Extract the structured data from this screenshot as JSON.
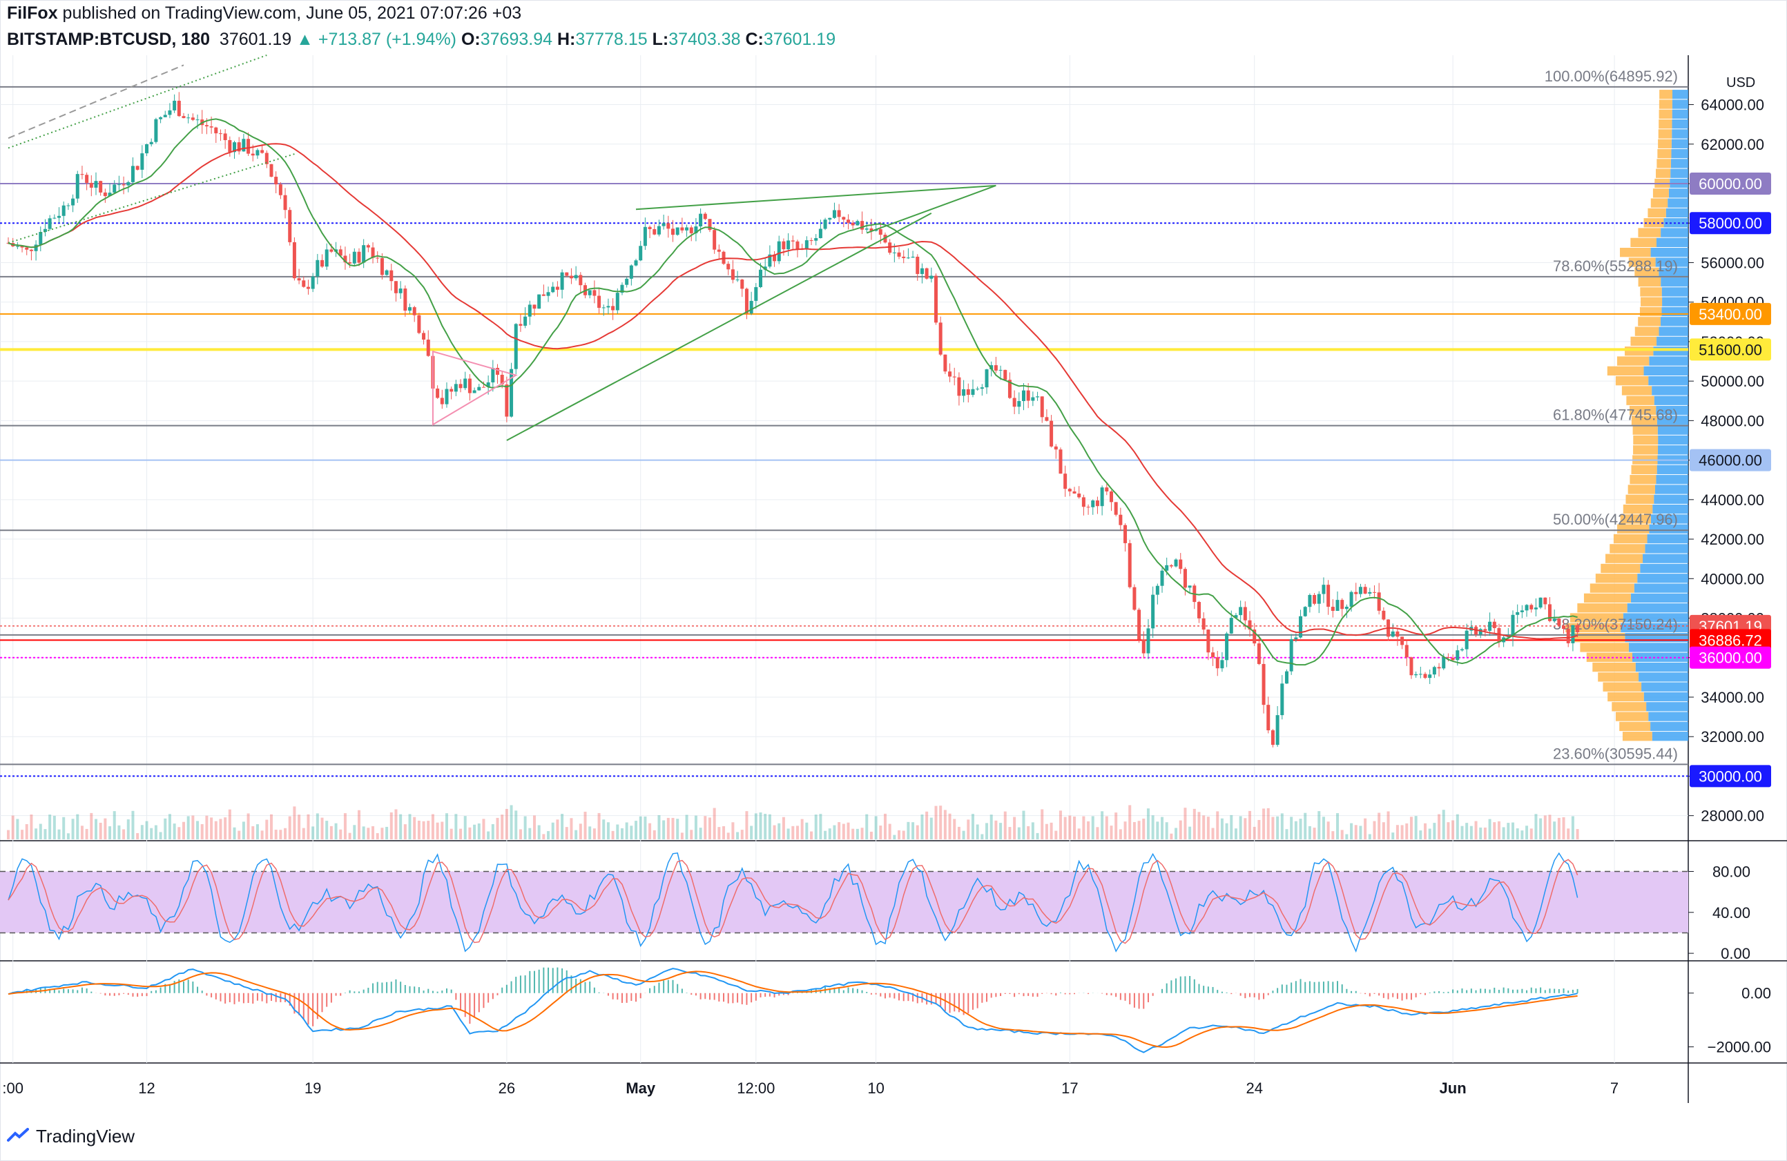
{
  "header": {
    "author": "FilFox",
    "published_text": " published on TradingView.com, June 05, 2021 07:07:26 +03",
    "symbol": "BITSTAMP:BTCUSD, 180",
    "last": "37601.19",
    "change": "▲ +713.87 (+1.94%)",
    "o_label": "O:",
    "o": "37693.94",
    "h_label": "H:",
    "h": "37778.15",
    "l_label": "L:",
    "l": "37403.38",
    "c_label": "C:",
    "c": "37601.19"
  },
  "footer": {
    "brand": "TradingView"
  },
  "colors": {
    "up": "#26a69a",
    "down": "#ef5350",
    "grid": "#e9edf2",
    "axis": "#131722",
    "ma_red": "#e53935",
    "ma_green": "#43a047",
    "stoch_band": "#e3c8f5",
    "blue": "#2196f3",
    "orange": "#ff6d00",
    "vp_blue": "#42a5f5",
    "vp_orange": "#ffb74d"
  },
  "chart_data": {
    "type": "candlestick",
    "title": "BITSTAMP:BTCUSD, 180",
    "currency": "USD",
    "x_ticks": [
      ":00",
      "12",
      "19",
      "26",
      "May",
      "12:00",
      "10",
      "17",
      "24",
      "Jun",
      "7"
    ],
    "x_tick_positions": [
      0.5,
      15,
      33,
      54,
      68.5,
      81,
      94,
      115,
      135,
      156.5,
      174
    ],
    "date_range_days": [
      0,
      182
    ],
    "price_range": [
      26800,
      66500
    ],
    "price_ticks": [
      28000,
      30000,
      32000,
      34000,
      36000,
      38000,
      40000,
      42000,
      44000,
      46000,
      48000,
      50000,
      52000,
      54000,
      56000,
      58000,
      60000,
      62000,
      64000
    ],
    "price_close_path": [
      [
        0,
        57000
      ],
      [
        2,
        56500
      ],
      [
        4,
        58000
      ],
      [
        6,
        58800
      ],
      [
        8,
        60500
      ],
      [
        10,
        59500
      ],
      [
        12,
        60000
      ],
      [
        14,
        61000
      ],
      [
        16,
        63000
      ],
      [
        18,
        64000
      ],
      [
        20,
        63200
      ],
      [
        22,
        62800
      ],
      [
        24,
        62000
      ],
      [
        26,
        61800
      ],
      [
        28,
        61000
      ],
      [
        30,
        59000
      ],
      [
        31,
        55000
      ],
      [
        32,
        54500
      ],
      [
        33,
        55500
      ],
      [
        35,
        56500
      ],
      [
        37,
        56000
      ],
      [
        39,
        56800
      ],
      [
        41,
        55500
      ],
      [
        43,
        54000
      ],
      [
        45,
        52500
      ],
      [
        46,
        50000
      ],
      [
        47,
        49000
      ],
      [
        49,
        50000
      ],
      [
        51,
        49500
      ],
      [
        53,
        50500
      ],
      [
        54,
        48500
      ],
      [
        55,
        53000
      ],
      [
        57,
        54000
      ],
      [
        59,
        55000
      ],
      [
        61,
        55200
      ],
      [
        63,
        54200
      ],
      [
        65,
        53500
      ],
      [
        67,
        55500
      ],
      [
        69,
        57500
      ],
      [
        71,
        57800
      ],
      [
        73,
        57200
      ],
      [
        75,
        58500
      ],
      [
        77,
        56500
      ],
      [
        79,
        55000
      ],
      [
        80,
        53500
      ],
      [
        82,
        56000
      ],
      [
        84,
        57000
      ],
      [
        86,
        56500
      ],
      [
        88,
        57500
      ],
      [
        90,
        58500
      ],
      [
        92,
        58000
      ],
      [
        94,
        57500
      ],
      [
        96,
        56500
      ],
      [
        98,
        56000
      ],
      [
        100,
        55000
      ],
      [
        101,
        51000
      ],
      [
        103,
        49500
      ],
      [
        105,
        50000
      ],
      [
        107,
        50500
      ],
      [
        109,
        49000
      ],
      [
        111,
        49500
      ],
      [
        113,
        47000
      ],
      [
        115,
        44000
      ],
      [
        117,
        43500
      ],
      [
        119,
        44500
      ],
      [
        121,
        42000
      ],
      [
        122,
        38000
      ],
      [
        123,
        36500
      ],
      [
        124,
        39000
      ],
      [
        126,
        41000
      ],
      [
        128,
        39500
      ],
      [
        129,
        38000
      ],
      [
        130,
        36000
      ],
      [
        131,
        35500
      ],
      [
        133,
        38500
      ],
      [
        135,
        37000
      ],
      [
        136,
        34000
      ],
      [
        137,
        31500
      ],
      [
        138,
        35000
      ],
      [
        140,
        38000
      ],
      [
        142,
        39500
      ],
      [
        144,
        38500
      ],
      [
        146,
        39500
      ],
      [
        148,
        39000
      ],
      [
        150,
        37000
      ],
      [
        152,
        35500
      ],
      [
        154,
        35000
      ],
      [
        156,
        36000
      ],
      [
        158,
        37000
      ],
      [
        160,
        37500
      ],
      [
        162,
        37000
      ],
      [
        164,
        38500
      ],
      [
        166,
        39000
      ],
      [
        168,
        37500
      ],
      [
        169,
        36800
      ],
      [
        170,
        37601
      ]
    ],
    "levels": [
      {
        "label": "100.00%(64895.92)",
        "price": 64895.92,
        "kind": "fib"
      },
      {
        "label": "78.60%(55288.19)",
        "price": 55288.19,
        "kind": "fib"
      },
      {
        "label": "61.80%(47745.68)",
        "price": 47745.68,
        "kind": "fib"
      },
      {
        "label": "50.00%(42447.96)",
        "price": 42447.96,
        "kind": "fib"
      },
      {
        "label": "38.20%(37150.24)",
        "price": 37150.24,
        "kind": "fib"
      },
      {
        "label": "23.60%(30595.44)",
        "price": 30595.44,
        "kind": "fib"
      }
    ],
    "price_labels": [
      {
        "value": "60000.00",
        "price": 60000,
        "color": "#8e7cc3"
      },
      {
        "value": "58000.00",
        "price": 58000,
        "color": "#1a1aff"
      },
      {
        "value": "53400.00",
        "price": 53400,
        "color": "#ff9800"
      },
      {
        "value": "51600.00",
        "price": 51600,
        "color": "#ffeb3b"
      },
      {
        "value": "46000.00",
        "price": 46000,
        "color": "#a4c2f4"
      },
      {
        "value": "37601.19",
        "price": 37601.19,
        "color": "#ef5350"
      },
      {
        "value": "36886.72",
        "price": 36886.72,
        "color": "#ff0000"
      },
      {
        "value": "36000.00",
        "price": 36000,
        "color": "#ff00ff"
      },
      {
        "value": "30000.00",
        "price": 30000,
        "color": "#1a1aff"
      }
    ],
    "stoch": {
      "range": [
        -6,
        110
      ],
      "upper": 80,
      "lower": 20,
      "ticks": [
        "80.00",
        "40.00",
        "0.00"
      ],
      "tick_values": [
        80,
        40,
        0
      ]
    },
    "macd": {
      "range": [
        -2600,
        1200
      ],
      "ticks": [
        "0.00",
        "−2000.00"
      ],
      "tick_values": [
        0,
        -2000
      ],
      "path": [
        [
          0,
          0
        ],
        [
          8,
          400
        ],
        [
          15,
          200
        ],
        [
          20,
          900
        ],
        [
          25,
          300
        ],
        [
          30,
          -200
        ],
        [
          33,
          -1400
        ],
        [
          38,
          -1300
        ],
        [
          42,
          -700
        ],
        [
          48,
          -500
        ],
        [
          50,
          -1500
        ],
        [
          53,
          -1400
        ],
        [
          56,
          -700
        ],
        [
          60,
          500
        ],
        [
          63,
          800
        ],
        [
          68,
          300
        ],
        [
          72,
          900
        ],
        [
          76,
          600
        ],
        [
          80,
          100
        ],
        [
          84,
          0
        ],
        [
          88,
          200
        ],
        [
          92,
          400
        ],
        [
          96,
          200
        ],
        [
          100,
          -300
        ],
        [
          104,
          -1300
        ],
        [
          108,
          -1400
        ],
        [
          112,
          -1500
        ],
        [
          116,
          -1500
        ],
        [
          120,
          -1600
        ],
        [
          123,
          -2200
        ],
        [
          125,
          -1900
        ],
        [
          128,
          -1300
        ],
        [
          132,
          -1200
        ],
        [
          136,
          -1500
        ],
        [
          140,
          -900
        ],
        [
          144,
          -400
        ],
        [
          148,
          -500
        ],
        [
          152,
          -800
        ],
        [
          156,
          -700
        ],
        [
          160,
          -500
        ],
        [
          164,
          -300
        ],
        [
          168,
          -100
        ],
        [
          170,
          0
        ]
      ]
    }
  }
}
